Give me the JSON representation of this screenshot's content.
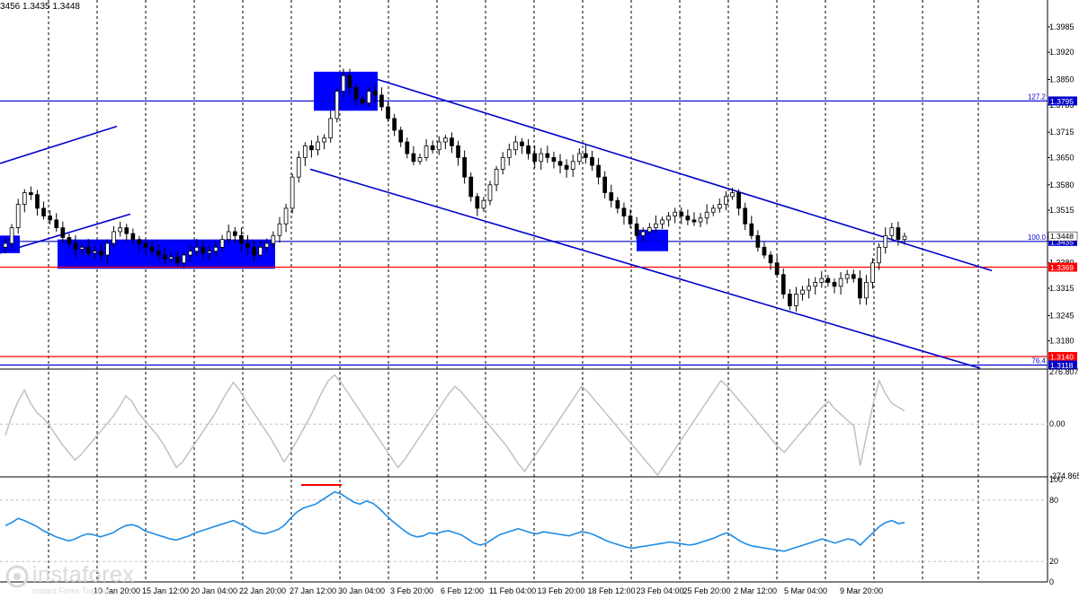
{
  "ohlc_text": "3456 1.3435 1.3448",
  "logo": {
    "name": "instaforex",
    "tagline": "Instant Forex Trading"
  },
  "colors": {
    "candle": "#000000",
    "zone": "#0000ff",
    "channel": "#0000cc",
    "level_blue": "#0000cc",
    "level_red": "#ff0000",
    "cci": "#bdbdbd",
    "rsi": "#1e8ce6",
    "grid": "#000000"
  },
  "chart_data": [
    {
      "type": "candlestick",
      "title": "",
      "ylim": [
        1.311,
        1.404
      ],
      "price_ticks": [
        "1.3985",
        "1.3920",
        "1.3850",
        "1.3785",
        "1.3715",
        "1.3650",
        "1.3580",
        "1.3515",
        "1.3445",
        "1.3380",
        "1.3315",
        "1.3245",
        "1.3180"
      ],
      "time_labels": [
        "10 Jan 20:00",
        "15 Jan 12:00",
        "20 Jan 04:00",
        "22 Jan 20:00",
        "27 Jan 12:00",
        "30 Jan 04:00",
        "3 Feb 20:00",
        "6 Feb 12:00",
        "11 Feb 04:00",
        "13 Feb 20:00",
        "18 Feb 12:00",
        "23 Feb 04:00",
        "25 Feb 20:00",
        "2 Mar 12:00",
        "5 Mar 04:00",
        "9 Mar 20:00"
      ],
      "close_series": [
        1.343,
        1.347,
        1.353,
        1.356,
        1.3555,
        1.352,
        1.35,
        1.349,
        1.347,
        1.3445,
        1.343,
        1.3415,
        1.342,
        1.3405,
        1.341,
        1.34,
        1.343,
        1.346,
        1.347,
        1.3455,
        1.344,
        1.343,
        1.342,
        1.341,
        1.34,
        1.339,
        1.3395,
        1.338,
        1.34,
        1.341,
        1.342,
        1.3405,
        1.341,
        1.342,
        1.344,
        1.346,
        1.345,
        1.343,
        1.342,
        1.34,
        1.342,
        1.343,
        1.345,
        1.348,
        1.352,
        1.36,
        1.365,
        1.368,
        1.367,
        1.369,
        1.37,
        1.375,
        1.382,
        1.386,
        1.383,
        1.38,
        1.379,
        1.382,
        1.381,
        1.378,
        1.375,
        1.372,
        1.369,
        1.366,
        1.364,
        1.365,
        1.368,
        1.367,
        1.369,
        1.37,
        1.368,
        1.365,
        1.36,
        1.355,
        1.352,
        1.354,
        1.358,
        1.362,
        1.365,
        1.367,
        1.369,
        1.368,
        1.366,
        1.364,
        1.366,
        1.365,
        1.364,
        1.363,
        1.362,
        1.364,
        1.366,
        1.365,
        1.363,
        1.36,
        1.356,
        1.354,
        1.352,
        1.35,
        1.348,
        1.345,
        1.346,
        1.347,
        1.348,
        1.349,
        1.35,
        1.351,
        1.35,
        1.349,
        1.3485,
        1.3495,
        1.351,
        1.352,
        1.353,
        1.355,
        1.356,
        1.352,
        1.348,
        1.345,
        1.342,
        1.34,
        1.338,
        1.335,
        1.33,
        1.327,
        1.33,
        1.331,
        1.332,
        1.333,
        1.334,
        1.333,
        1.332,
        1.334,
        1.335,
        1.334,
        1.329,
        1.333,
        1.338,
        1.342,
        1.345,
        1.347,
        1.344,
        1.3448
      ],
      "horizontal_levels": [
        {
          "price": 1.3795,
          "label": "1.3795",
          "fib_label": "127.2",
          "color": "blue"
        },
        {
          "price": 1.3435,
          "label": "1.3435",
          "fib_label": "100.0",
          "color": "blue"
        },
        {
          "price": 1.3369,
          "label": "1.3369",
          "fib_label": "",
          "color": "red"
        },
        {
          "price": 1.314,
          "label": "1.3140",
          "fib_label": "",
          "color": "red"
        },
        {
          "price": 1.3118,
          "label": "1.3118",
          "fib_label": "76.4",
          "color": "blue"
        }
      ],
      "current_price": "1.3448"
    },
    {
      "type": "line",
      "name": "CCI",
      "ylim": [
        -274.8658,
        276.8074
      ],
      "ticks": [
        "276.8074",
        "0.00",
        "-274.8658"
      ],
      "values": [
        -60,
        40,
        120,
        180,
        110,
        60,
        30,
        -10,
        -60,
        -110,
        -150,
        -190,
        -160,
        -120,
        -80,
        -40,
        0,
        40,
        90,
        150,
        120,
        60,
        20,
        -20,
        -60,
        -110,
        -170,
        -230,
        -200,
        -150,
        -100,
        -50,
        0,
        50,
        110,
        170,
        220,
        180,
        120,
        70,
        20,
        -30,
        -80,
        -140,
        -200,
        -150,
        -90,
        -30,
        30,
        100,
        170,
        230,
        260,
        220,
        170,
        120,
        70,
        20,
        -30,
        -80,
        -130,
        -180,
        -230,
        -190,
        -140,
        -90,
        -40,
        10,
        60,
        110,
        160,
        200,
        170,
        130,
        90,
        50,
        10,
        -30,
        -70,
        -110,
        -160,
        -210,
        -250,
        -200,
        -150,
        -100,
        -50,
        0,
        50,
        100,
        150,
        200,
        170,
        130,
        90,
        50,
        10,
        -30,
        -70,
        -110,
        -150,
        -190,
        -230,
        -270,
        -220,
        -170,
        -120,
        -70,
        -20,
        30,
        80,
        130,
        180,
        230,
        200,
        160,
        120,
        80,
        40,
        0,
        -40,
        -80,
        -120,
        -150,
        -110,
        -70,
        -30,
        10,
        50,
        90,
        120,
        80,
        50,
        20,
        -10,
        -220,
        -60,
        100,
        230,
        160,
        110,
        90,
        70
      ]
    },
    {
      "type": "line",
      "name": "RSI",
      "ylim": [
        0,
        100
      ],
      "ticks": [
        "100",
        "80",
        "20",
        "0"
      ],
      "values": [
        55,
        58,
        62,
        60,
        57,
        54,
        50,
        47,
        44,
        42,
        40,
        42,
        45,
        47,
        46,
        44,
        46,
        48,
        52,
        55,
        56,
        54,
        50,
        48,
        46,
        44,
        42,
        41,
        43,
        45,
        48,
        50,
        52,
        54,
        56,
        58,
        60,
        57,
        54,
        50,
        48,
        47,
        49,
        51,
        55,
        62,
        68,
        72,
        74,
        76,
        80,
        84,
        88,
        86,
        82,
        78,
        76,
        79,
        77,
        72,
        66,
        60,
        55,
        50,
        46,
        44,
        45,
        48,
        47,
        49,
        50,
        48,
        46,
        42,
        38,
        36,
        38,
        42,
        46,
        48,
        50,
        52,
        50,
        48,
        47,
        49,
        48,
        47,
        46,
        45,
        47,
        49,
        48,
        46,
        43,
        40,
        38,
        36,
        34,
        33,
        34,
        35,
        36,
        37,
        38,
        39,
        38,
        37,
        36,
        37,
        39,
        41,
        43,
        46,
        48,
        44,
        40,
        37,
        35,
        34,
        33,
        32,
        31,
        30,
        32,
        34,
        36,
        38,
        40,
        42,
        40,
        38,
        40,
        42,
        41,
        36,
        42,
        48,
        54,
        58,
        60,
        57,
        58
      ]
    }
  ]
}
